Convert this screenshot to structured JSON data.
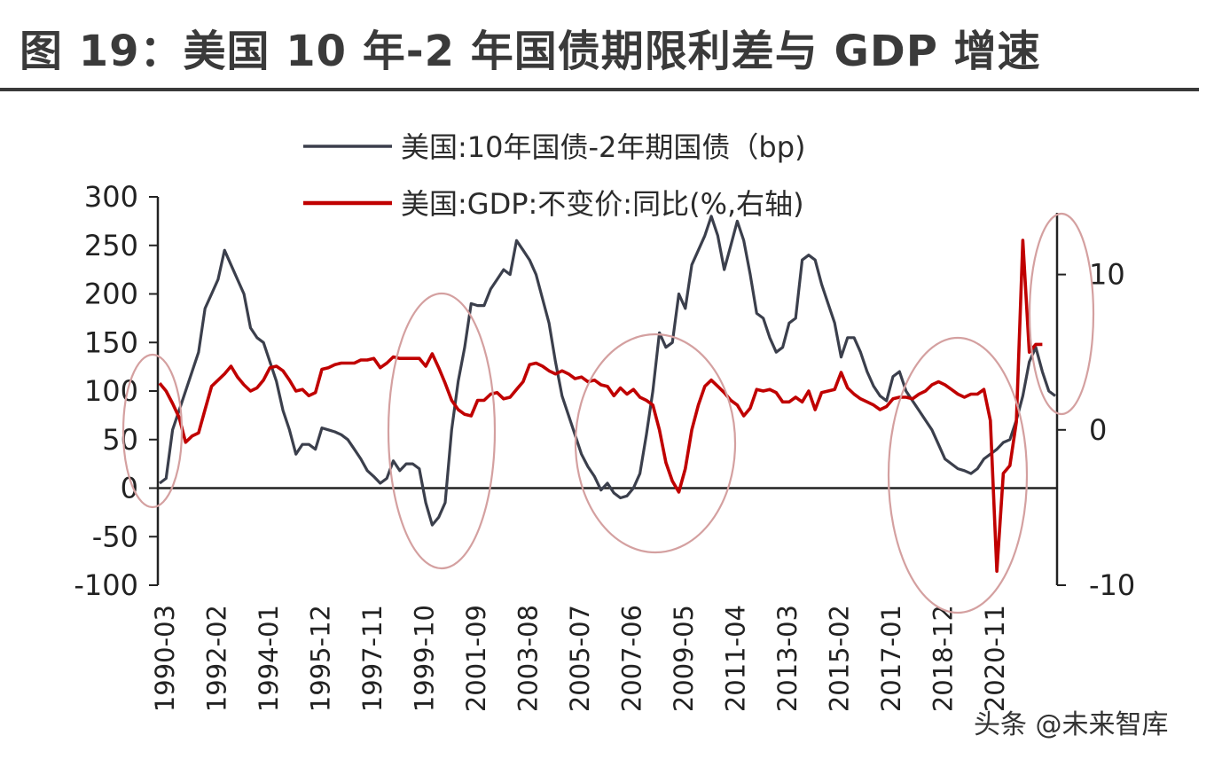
{
  "title": "图 19：美国 10 年-2 年国债期限利差与 GDP 增速",
  "watermark": "头条 @未来智库",
  "colors": {
    "spread": "#3b3f4c",
    "gdp": "#c00000",
    "circle": "#d4a0a0",
    "axis": "#222222"
  },
  "chart_data": {
    "type": "line",
    "title": "图 19：美国 10 年-2 年国债期限利差与 GDP 增速",
    "legend_position": "top-center",
    "grid": false,
    "x_start": "1990-03",
    "x_frequency": "quarterly",
    "x_tick_labels": [
      "1990-03",
      "1992-02",
      "1994-01",
      "1995-12",
      "1997-11",
      "1999-10",
      "2001-09",
      "2003-08",
      "2005-07",
      "2007-06",
      "2009-05",
      "2011-04",
      "2013-03",
      "2015-02",
      "2017-01",
      "2018-12",
      "2020-11"
    ],
    "y_left": {
      "ylim": [
        -100,
        300
      ],
      "ticks": [
        300,
        250,
        200,
        150,
        100,
        50,
        0,
        -50,
        -100
      ]
    },
    "y_right": {
      "ylim": [
        -10,
        15
      ],
      "ticks": [
        10,
        0,
        -10
      ]
    },
    "series": [
      {
        "name": "美国:10年国债-2年期国债（bp)",
        "axis": "left",
        "color": "#3b3f4c",
        "values": [
          5,
          10,
          60,
          80,
          100,
          120,
          140,
          185,
          200,
          215,
          245,
          230,
          215,
          200,
          165,
          155,
          150,
          130,
          110,
          80,
          60,
          35,
          45,
          45,
          40,
          62,
          60,
          58,
          55,
          50,
          40,
          30,
          18,
          12,
          5,
          10,
          28,
          18,
          25,
          25,
          20,
          -15,
          -38,
          -30,
          -15,
          60,
          110,
          145,
          190,
          188,
          188,
          205,
          215,
          225,
          220,
          255,
          245,
          235,
          220,
          195,
          170,
          130,
          95,
          75,
          55,
          35,
          22,
          12,
          -2,
          5,
          -5,
          -10,
          -8,
          0,
          15,
          55,
          100,
          160,
          145,
          150,
          200,
          185,
          230,
          245,
          260,
          280,
          260,
          225,
          250,
          275,
          255,
          220,
          180,
          175,
          155,
          140,
          145,
          170,
          175,
          235,
          240,
          235,
          210,
          190,
          170,
          135,
          155,
          155,
          140,
          120,
          105,
          95,
          90,
          115,
          120,
          100,
          90,
          80,
          70,
          60,
          45,
          30,
          25,
          20,
          18,
          15,
          20,
          30,
          35,
          40,
          47,
          50,
          70,
          95,
          130,
          145,
          120,
          100,
          95
        ]
      },
      {
        "name": "美国:GDP:不变价:同比(%,右轴)",
        "axis": "right",
        "color": "#c00000",
        "values": [
          3,
          2.5,
          1.7,
          0.8,
          -0.8,
          -0.4,
          -0.2,
          1.3,
          2.8,
          3.2,
          3.6,
          4.1,
          3.4,
          2.9,
          2.5,
          2.7,
          3.2,
          4.0,
          4.1,
          3.8,
          3.2,
          2.5,
          2.6,
          2.2,
          2.4,
          3.9,
          4.0,
          4.2,
          4.3,
          4.3,
          4.3,
          4.5,
          4.5,
          4.6,
          4.0,
          4.3,
          4.7,
          4.6,
          4.6,
          4.6,
          4.6,
          4.1,
          4.9,
          4.0,
          3.0,
          1.9,
          1.3,
          1.0,
          0.9,
          1.9,
          1.9,
          2.3,
          2.4,
          2.0,
          2.1,
          2.6,
          3.1,
          4.2,
          4.3,
          4.1,
          3.8,
          3.6,
          3.8,
          3.6,
          3.3,
          3.4,
          3.1,
          3.2,
          2.9,
          2.8,
          2.2,
          2.7,
          2.3,
          2.6,
          2.1,
          1.9,
          1.6,
          0.0,
          -2.1,
          -3.3,
          -4.0,
          -2.5,
          0.0,
          1.6,
          2.8,
          3.2,
          2.8,
          2.4,
          1.9,
          1.6,
          0.9,
          1.4,
          2.6,
          2.5,
          2.6,
          2.4,
          1.8,
          1.8,
          2.1,
          1.8,
          2.5,
          1.3,
          2.4,
          2.5,
          2.6,
          3.7,
          2.7,
          2.3,
          2.0,
          1.8,
          1.6,
          1.3,
          1.5,
          2.0,
          2.1,
          2.1,
          2.0,
          2.3,
          2.5,
          2.9,
          3.1,
          2.9,
          2.6,
          2.3,
          2.1,
          2.3,
          2.3,
          2.6,
          0.6,
          -9.1,
          -2.8,
          -2.3,
          0.5,
          12.2,
          5.0,
          5.5,
          5.5
        ]
      }
    ],
    "highlight_circles": 6
  }
}
